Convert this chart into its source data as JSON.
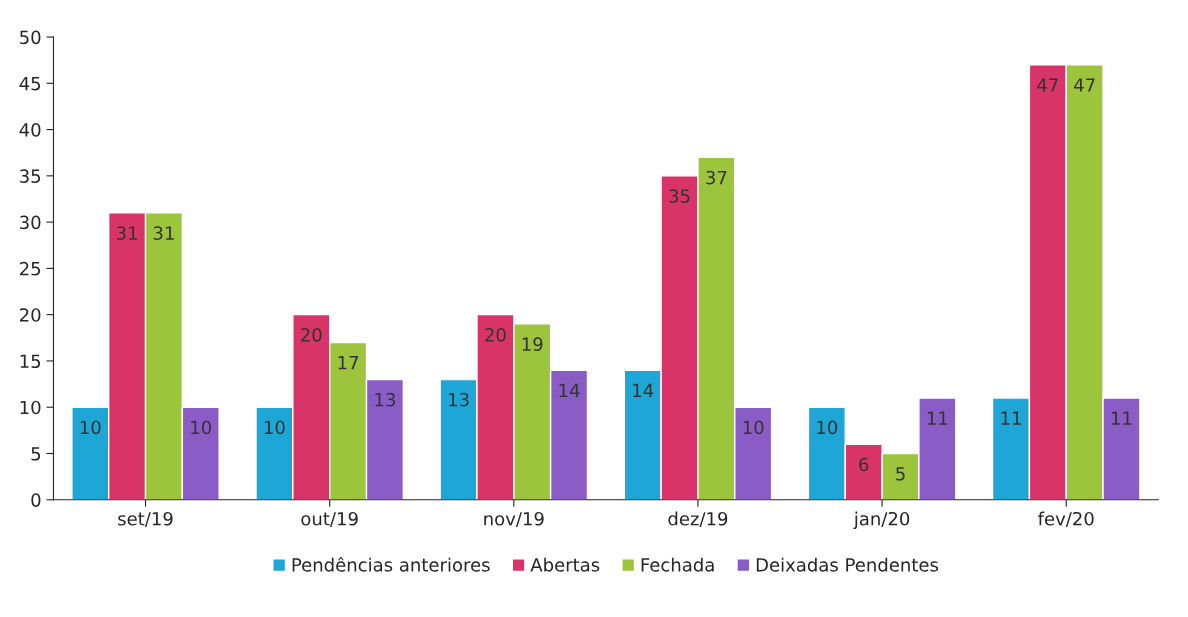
{
  "chart_data": {
    "type": "bar",
    "categories": [
      "set/19",
      "out/19",
      "nov/19",
      "dez/19",
      "jan/20",
      "fev/20"
    ],
    "series": [
      {
        "name": "Pendências anteriores",
        "color": "#1ea6d6",
        "values": [
          10,
          10,
          13,
          14,
          10,
          11
        ]
      },
      {
        "name": "Abertas",
        "color": "#d8346a",
        "values": [
          31,
          20,
          20,
          35,
          6,
          47
        ]
      },
      {
        "name": "Fechada",
        "color": "#9cc43c",
        "values": [
          31,
          17,
          19,
          37,
          5,
          47
        ]
      },
      {
        "name": "Deixadas Pendentes",
        "color": "#8a5cc6",
        "values": [
          10,
          13,
          14,
          10,
          11,
          11
        ]
      }
    ],
    "ylim": [
      0,
      50
    ],
    "yticks": [
      0,
      5,
      10,
      15,
      20,
      25,
      30,
      35,
      40,
      45,
      50
    ],
    "data_labels": true,
    "grid": false,
    "legend": "bottom"
  }
}
